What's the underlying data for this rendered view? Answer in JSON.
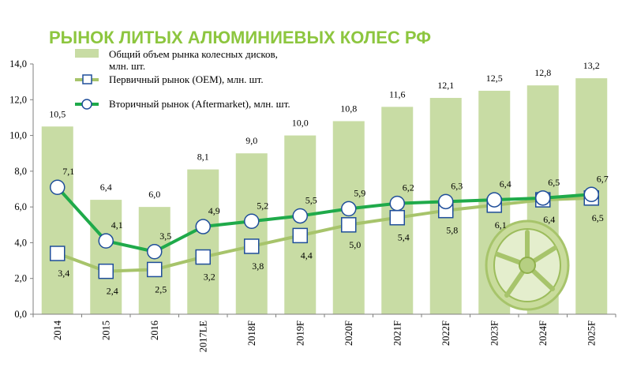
{
  "chart_data": {
    "type": "bar",
    "title": "РЫНОК ЛИТЫХ АЛЮМИНИЕВЫХ КОЛЕС РФ",
    "categories": [
      "2014",
      "2015",
      "2016",
      "2017LE",
      "2018F",
      "2019F",
      "2020F",
      "2021F",
      "2022F",
      "2023F",
      "2024F",
      "2025F"
    ],
    "ylim": [
      0,
      14
    ],
    "yticks": [
      "0,0",
      "2,0",
      "4,0",
      "6,0",
      "8,0",
      "10,0",
      "12,0",
      "14,0"
    ],
    "grid": false,
    "legend_position": "top-left",
    "series": [
      {
        "name": "Общий объем рынка колесных дисков, млн. шт.",
        "type": "bar",
        "color": "#c8dca4",
        "values": [
          10.5,
          6.4,
          6.0,
          8.1,
          9.0,
          10.0,
          10.8,
          11.6,
          12.1,
          12.5,
          12.8,
          13.2
        ],
        "labels": [
          "10,5",
          "6,4",
          "6,0",
          "8,1",
          "9,0",
          "10,0",
          "10,8",
          "11,6",
          "12,1",
          "12,5",
          "12,8",
          "13,2"
        ]
      },
      {
        "name": "Первичный рынок (OEM), млн. шт.",
        "type": "line",
        "marker": "square",
        "color": "#a7c46b",
        "marker_stroke": "#1f4e9a",
        "values": [
          3.4,
          2.4,
          2.5,
          3.2,
          3.8,
          4.4,
          5.0,
          5.4,
          5.8,
          6.1,
          6.4,
          6.5
        ],
        "labels": [
          "3,4",
          "2,4",
          "2,5",
          "3,2",
          "3,8",
          "4,4",
          "5,0",
          "5,4",
          "5,8",
          "6,1",
          "6,4",
          "6,5"
        ]
      },
      {
        "name": "Вторичный рынок (Aftermarket), млн. шт.",
        "type": "line",
        "marker": "circle",
        "color": "#1faa4a",
        "marker_stroke": "#1f4e9a",
        "values": [
          7.1,
          4.1,
          3.5,
          4.9,
          5.2,
          5.5,
          5.9,
          6.2,
          6.3,
          6.4,
          6.5,
          6.7
        ],
        "labels": [
          "7,1",
          "4,1",
          "3,5",
          "4,9",
          "5,2",
          "5,5",
          "5,9",
          "6,2",
          "6,3",
          "6,4",
          "6,5",
          "6,7"
        ]
      }
    ]
  }
}
